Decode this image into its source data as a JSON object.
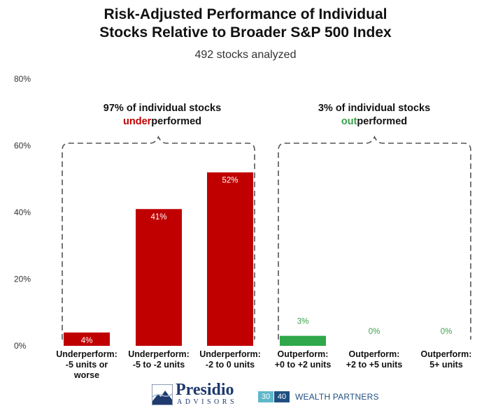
{
  "chart_data": {
    "type": "bar",
    "title_lines": [
      "Risk-Adjusted Performance of Individual",
      "Stocks Relative to Broader S&P 500 Index"
    ],
    "subtitle": "492 stocks analyzed",
    "categories": [
      [
        "Underperform:",
        "-5 units or",
        "worse"
      ],
      [
        "Underperform:",
        "-5 to -2 units"
      ],
      [
        "Underperform:",
        "-2 to 0 units"
      ],
      [
        "Outperform:",
        "+0 to +2 units"
      ],
      [
        "Outperform:",
        "+2 to +5 units"
      ],
      [
        "Outperform:",
        "5+ units"
      ]
    ],
    "values": [
      4,
      41,
      52,
      3,
      0,
      0
    ],
    "data_labels": [
      "4%",
      "41%",
      "52%",
      "3%",
      "0%",
      "0%"
    ],
    "bar_colors": [
      "#c00000",
      "#c00000",
      "#c00000",
      "#2ea84a",
      "#2ea84a",
      "#2ea84a"
    ],
    "ylim": [
      0,
      80
    ],
    "yticks": [
      0,
      20,
      40,
      60,
      80
    ],
    "ytick_labels": [
      "0%",
      "20%",
      "40%",
      "60%",
      "80%"
    ],
    "grid": false,
    "legend": "none",
    "annotations": [
      {
        "line1": "97% of individual stocks",
        "highlight": "under",
        "rest": "performed",
        "color": "#c00000",
        "span": [
          0,
          2
        ]
      },
      {
        "line1": "3% of individual stocks",
        "highlight": "out",
        "rest": "performed",
        "color": "#3aa14a",
        "span": [
          3,
          5
        ]
      }
    ]
  },
  "logos": {
    "presidio_name": "Presidio",
    "presidio_sub": "ADVISORS",
    "box1": "30",
    "box2": "40",
    "wealth_partners": "WEALTH PARTNERS"
  }
}
